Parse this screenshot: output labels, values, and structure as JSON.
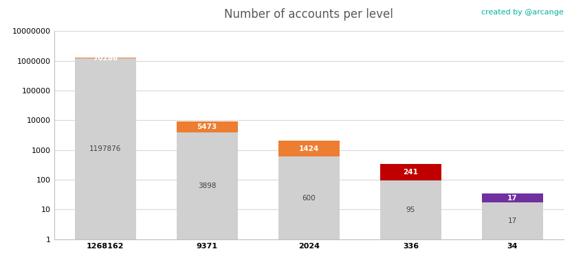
{
  "chart_data": {
    "type": "bar",
    "title": "Number of accounts per level",
    "subtitle": "created by @arcange",
    "categories": [
      "1268162",
      "9371",
      "2024",
      "336",
      "34"
    ],
    "series": [
      {
        "color": "#d0d0d0",
        "values": [
          1197876,
          3898,
          600,
          95,
          17
        ]
      },
      {
        "colors": [
          "#ed7d31",
          "#ed7d31",
          "#ed7d31",
          "#c00000",
          "#7030a0"
        ],
        "values": [
          70286,
          5473,
          1424,
          241,
          17
        ]
      }
    ],
    "stacked": true,
    "data_labels": true,
    "log": "y",
    "grid": true,
    "ylim": [
      1,
      10000000
    ],
    "yticks": [
      1,
      10,
      100,
      1000,
      10000,
      100000,
      1000000,
      10000000
    ]
  }
}
